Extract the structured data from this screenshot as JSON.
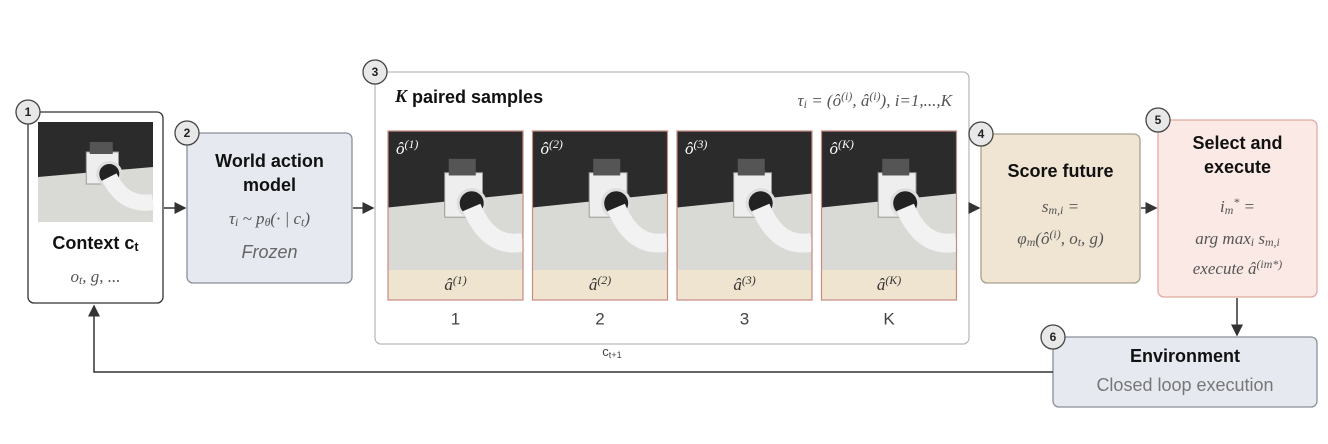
{
  "nodes": [
    {
      "badge": "1",
      "title": [
        {
          "runs": [
            {
              "text": "Context "
            },
            {
              "text": "c"
            },
            {
              "text": "t",
              "pos": "sub"
            }
          ]
        }
      ],
      "body": [
        {
          "font": "serif",
          "runs": [
            {
              "text": "o"
            },
            {
              "text": "t",
              "pos": "sub"
            },
            {
              "text": ", g, ..."
            }
          ]
        }
      ]
    },
    {
      "badge": "2",
      "title": [
        {
          "runs": [
            {
              "text": "World action"
            }
          ]
        },
        {
          "runs": [
            {
              "text": "model"
            }
          ]
        }
      ],
      "body": [
        {
          "font": "serif",
          "runs": [
            {
              "text": "τ"
            },
            {
              "text": "i",
              "pos": "sub"
            },
            {
              "text": " ~ p"
            },
            {
              "text": "θ",
              "pos": "sub"
            },
            {
              "text": "(· | c"
            },
            {
              "text": "t",
              "pos": "sub"
            },
            {
              "text": ")"
            }
          ]
        },
        {
          "font": "sans",
          "runs": [
            {
              "text": "Frozen"
            }
          ]
        }
      ]
    },
    {
      "badge": "3",
      "title": [
        {
          "runs": [
            {
              "text": "K",
              "font": "serif"
            },
            {
              "text": " paired samples"
            }
          ]
        }
      ],
      "body": [
        {
          "font": "serif",
          "runs": [
            {
              "text": "τ"
            },
            {
              "text": "i",
              "pos": "sub"
            },
            {
              "text": " = (ô"
            },
            {
              "text": "(i)",
              "pos": "sup"
            },
            {
              "text": ", â"
            },
            {
              "text": "(i)",
              "pos": "sup"
            },
            {
              "text": "),  i=1,...,K"
            }
          ]
        }
      ],
      "samples": [
        {
          "observation": [
            {
              "text": "ô"
            },
            {
              "text": "(1)",
              "pos": "sup"
            }
          ],
          "action": [
            {
              "text": "â"
            },
            {
              "text": "(1)",
              "pos": "sup"
            }
          ],
          "index": "1"
        },
        {
          "observation": [
            {
              "text": "ô"
            },
            {
              "text": "(2)",
              "pos": "sup"
            }
          ],
          "action": [
            {
              "text": "â"
            },
            {
              "text": "(2)",
              "pos": "sup"
            }
          ],
          "index": "2"
        },
        {
          "observation": [
            {
              "text": "ô"
            },
            {
              "text": "(3)",
              "pos": "sup"
            }
          ],
          "action": [
            {
              "text": "â"
            },
            {
              "text": "(3)",
              "pos": "sup"
            }
          ],
          "index": "3"
        },
        {
          "observation": [
            {
              "text": "ô"
            },
            {
              "text": "(K)",
              "pos": "sup"
            }
          ],
          "action": [
            {
              "text": "â"
            },
            {
              "text": "(K)",
              "pos": "sup"
            }
          ],
          "index": "K"
        }
      ]
    },
    {
      "badge": "4",
      "title": [
        {
          "runs": [
            {
              "text": "Score future"
            }
          ]
        }
      ],
      "body": [
        {
          "font": "serif",
          "runs": [
            {
              "text": "s"
            },
            {
              "text": "m,i",
              "pos": "sub"
            },
            {
              "text": " ="
            }
          ]
        },
        {
          "font": "serif",
          "runs": [
            {
              "text": "φ"
            },
            {
              "text": "m",
              "pos": "sub"
            },
            {
              "text": "(ô"
            },
            {
              "text": "(i)",
              "pos": "sup"
            },
            {
              "text": ", o"
            },
            {
              "text": "t",
              "pos": "sub"
            },
            {
              "text": ", g)"
            }
          ]
        }
      ]
    },
    {
      "badge": "5",
      "title": [
        {
          "runs": [
            {
              "text": "Select and"
            }
          ]
        },
        {
          "runs": [
            {
              "text": "execute"
            }
          ]
        }
      ],
      "body": [
        {
          "font": "serif",
          "runs": [
            {
              "text": "i"
            },
            {
              "text": "m",
              "pos": "sub"
            },
            {
              "text": "*",
              "pos": "sup"
            },
            {
              "text": " ="
            }
          ]
        },
        {
          "font": "serif",
          "runs": [
            {
              "text": "arg max"
            },
            {
              "text": "i",
              "pos": "sub"
            },
            {
              "text": " s"
            },
            {
              "text": "m,i",
              "pos": "sub"
            }
          ]
        },
        {
          "font": "serif",
          "runs": [
            {
              "text": "execute â"
            },
            {
              "text": "(i",
              "pos": "sup"
            },
            {
              "text": "m",
              "pos": "sup"
            },
            {
              "text": "*)",
              "pos": "sup"
            }
          ]
        }
      ]
    },
    {
      "badge": "6",
      "title": [
        {
          "runs": [
            {
              "text": "Environment"
            }
          ]
        }
      ],
      "body": [
        {
          "font": "plain",
          "runs": [
            {
              "text": "Closed loop execution"
            }
          ]
        }
      ]
    }
  ],
  "feedback": {
    "label": [
      {
        "text": "c"
      },
      {
        "text": "t+1",
        "pos": "sub"
      }
    ]
  }
}
